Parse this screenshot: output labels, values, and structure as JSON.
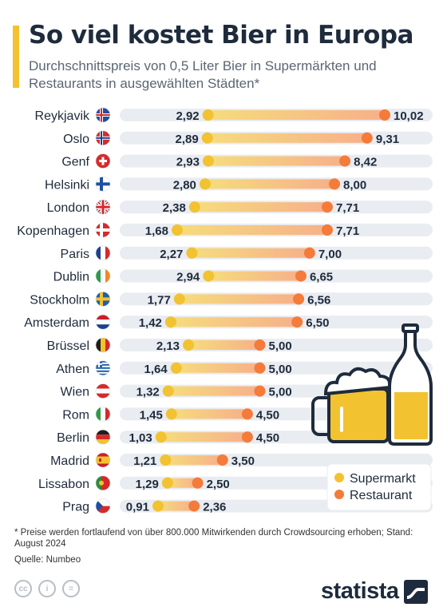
{
  "header": {
    "title": "So viel kostet Bier in Europa",
    "subtitle": "Durchschnittspreis von 0,5 Liter Bier in Supermärkten und Restaurants in ausgewählten Städten*"
  },
  "chart_data": {
    "type": "dumbbell",
    "categories": [
      "Reykjavik",
      "Oslo",
      "Genf",
      "Helsinki",
      "London",
      "Kopenhagen",
      "Paris",
      "Dublin",
      "Stockholm",
      "Amsterdam",
      "Brüssel",
      "Athen",
      "Wien",
      "Rom",
      "Berlin",
      "Madrid",
      "Lissabon",
      "Prag"
    ],
    "flags": [
      "iceland",
      "norway",
      "switzerland",
      "finland",
      "united-kingdom",
      "denmark",
      "france",
      "ireland",
      "sweden",
      "netherlands",
      "belgium",
      "greece",
      "austria",
      "italy",
      "germany",
      "spain",
      "portugal",
      "czech-republic"
    ],
    "series": [
      {
        "name": "Supermarkt",
        "color": "#f2c230",
        "values": [
          2.92,
          2.89,
          2.93,
          2.8,
          2.38,
          1.68,
          2.27,
          2.94,
          1.77,
          1.42,
          2.13,
          1.64,
          1.32,
          1.45,
          1.03,
          1.21,
          1.29,
          0.91
        ]
      },
      {
        "name": "Restaurant",
        "color": "#f47b3a",
        "values": [
          10.02,
          9.31,
          8.42,
          8.0,
          7.71,
          7.71,
          7.0,
          6.65,
          6.56,
          6.5,
          5.0,
          5.0,
          5.0,
          4.5,
          4.5,
          3.5,
          2.5,
          2.36
        ]
      }
    ],
    "value_labels_supermarkt": [
      "2,92",
      "2,89",
      "2,93",
      "2,80",
      "2,38",
      "1,68",
      "2,27",
      "2,94",
      "1,77",
      "1,42",
      "2,13",
      "1,64",
      "1,32",
      "1,45",
      "1,03",
      "1,21",
      "1,29",
      "0,91"
    ],
    "value_labels_restaurant": [
      "10,02",
      "9,31",
      "8,42",
      "8,00",
      "7,71",
      "7,71",
      "7,00",
      "6,65",
      "6,56",
      "6,50",
      "5,00",
      "5,00",
      "5,00",
      "4,50",
      "4,50",
      "3,50",
      "2,50",
      "2,36"
    ],
    "xlim": [
      0,
      10.5
    ],
    "legend_position": "bottom-right",
    "track_color": "#e9ecf1"
  },
  "footer": {
    "footnote": "* Preise werden fortlaufend von über 800.000 Mitwirkenden durch Crowdsourcing erhoben; Stand: August 2024",
    "source": "Quelle: Numbeo",
    "brand": "statista",
    "license_icons": [
      "cc-icon",
      "attribution-icon",
      "no-derivatives-icon"
    ]
  },
  "decoration": {
    "illustration": "beer-mug-and-bottle"
  }
}
